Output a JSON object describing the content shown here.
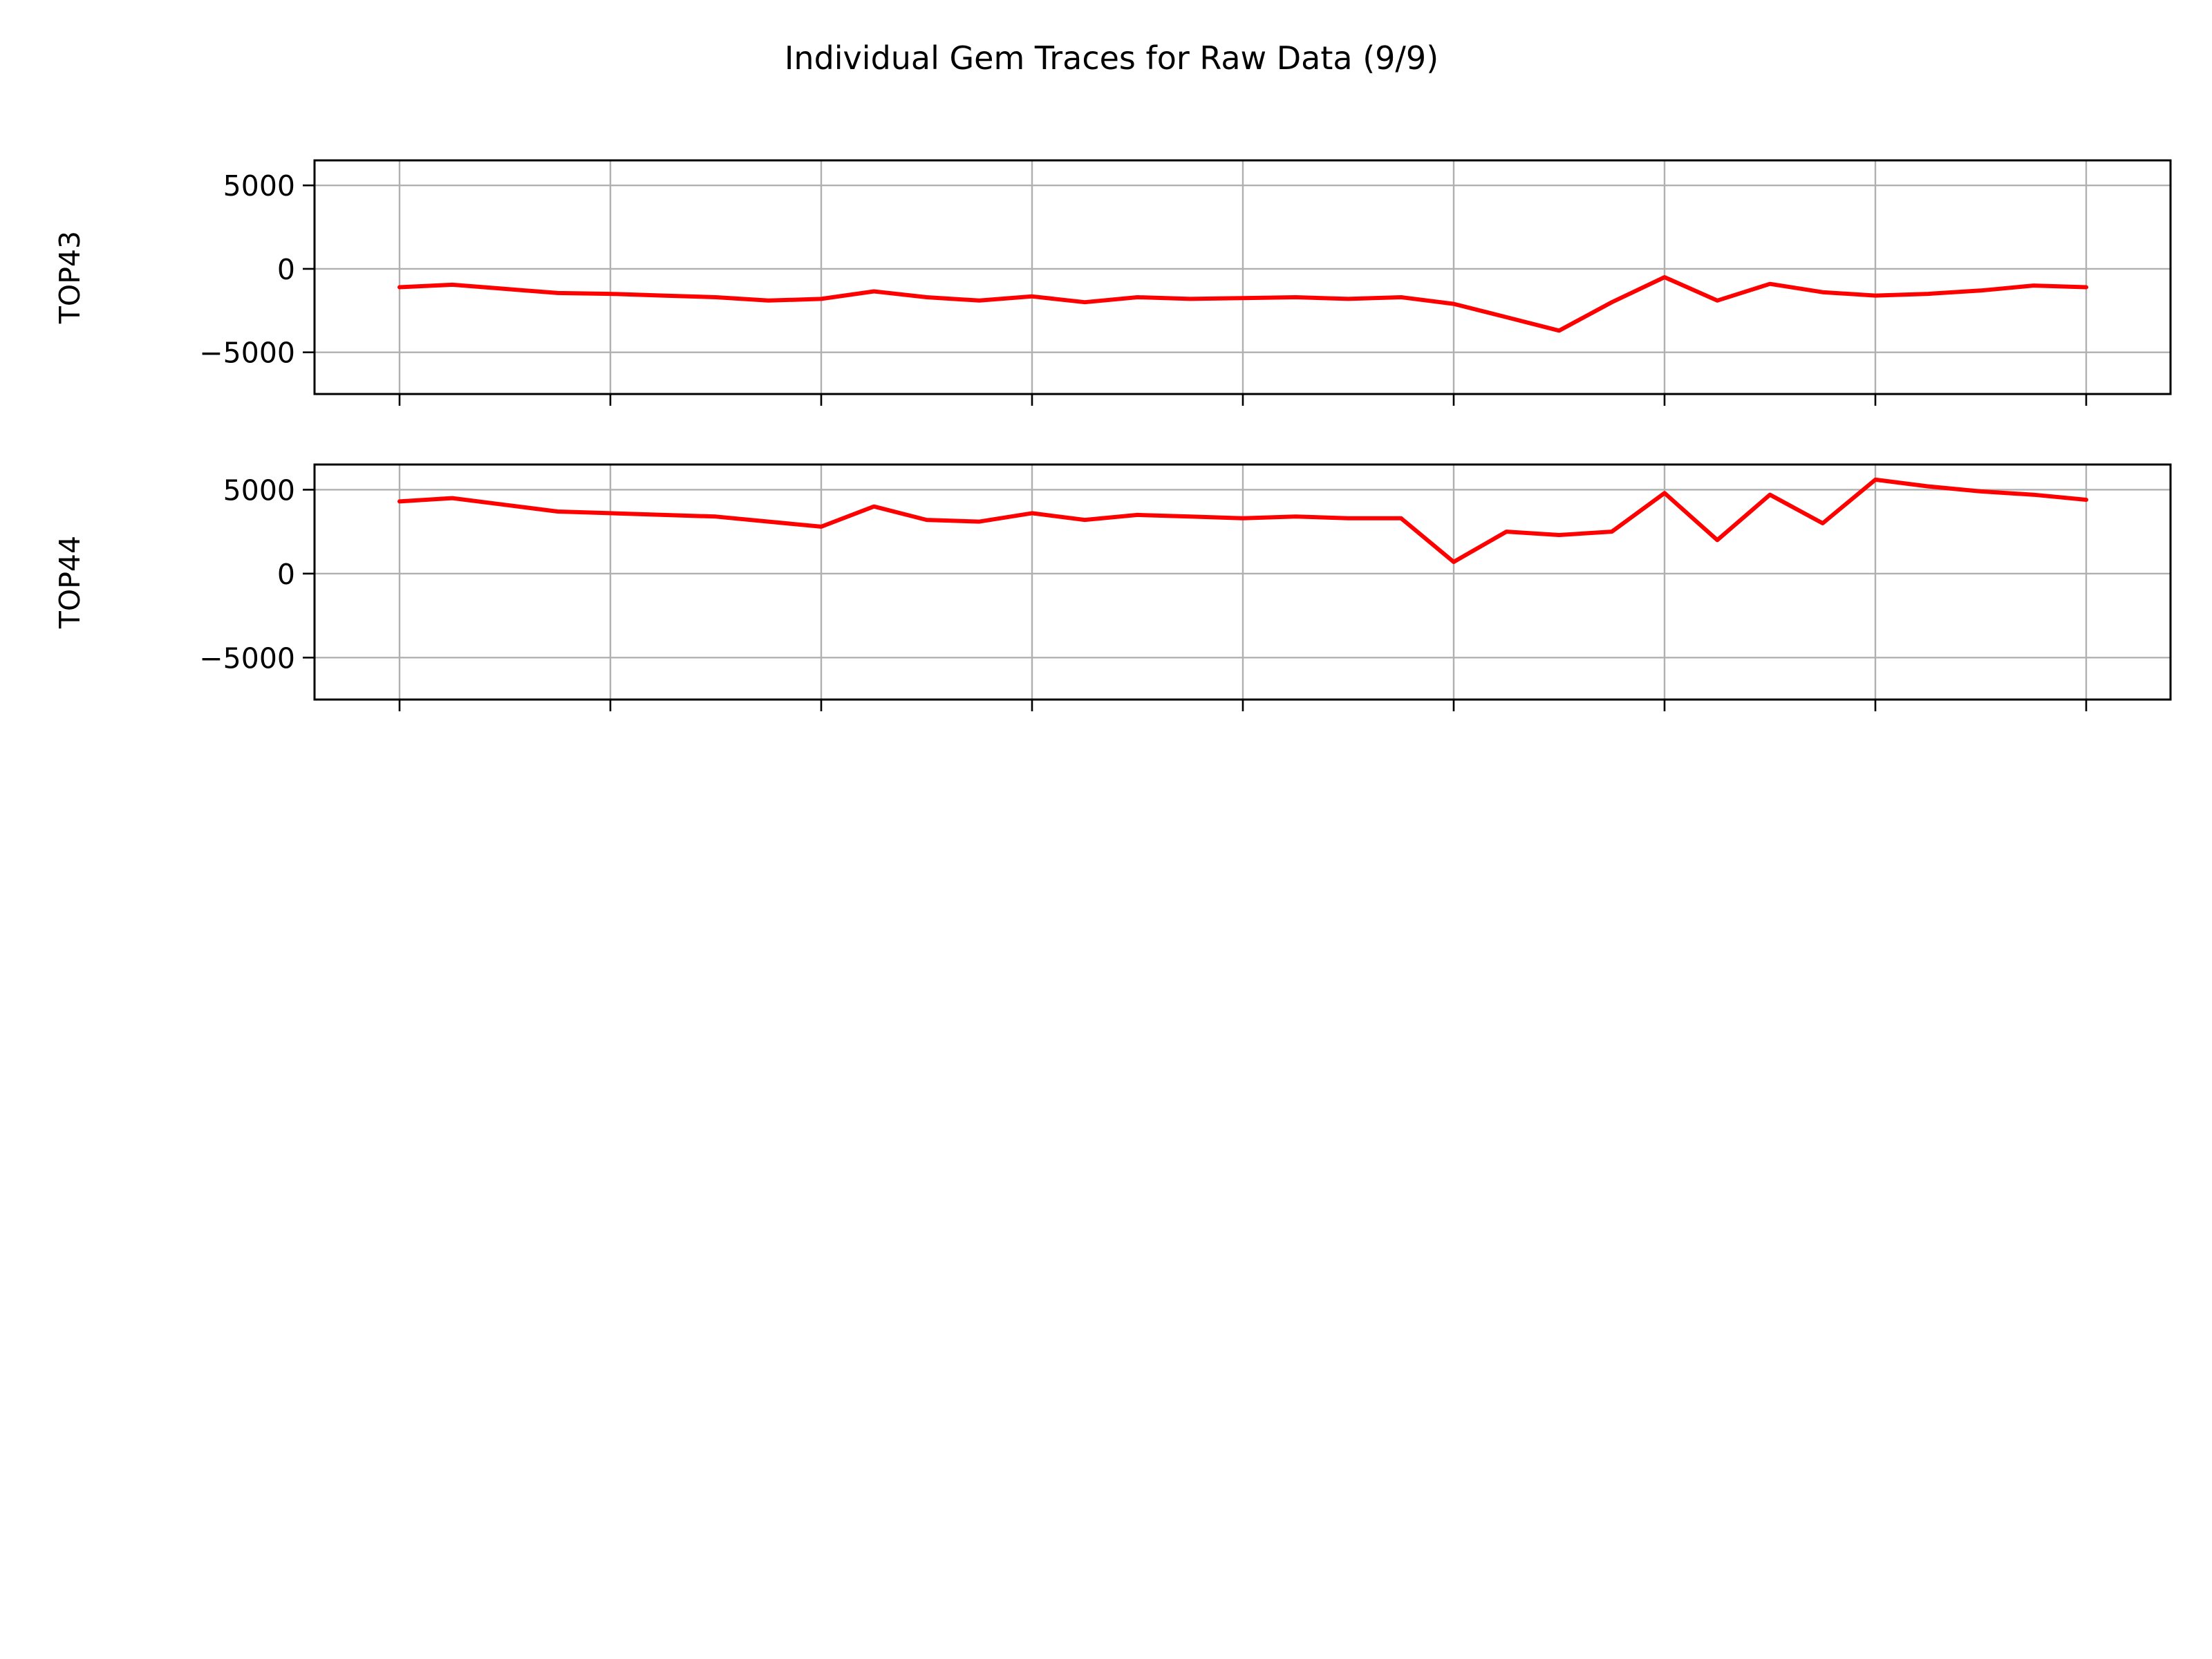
{
  "chart_data": {
    "type": "line",
    "title": "Individual Gem Traces for Raw Data (9/9)",
    "color": "#ff0000",
    "grid": true,
    "x_tick_count": 9,
    "x_tick_labels_visible": false,
    "panels": [
      {
        "ylabel": "TOP43",
        "ylim": [
          -7500,
          6500
        ],
        "yticks": [
          5000,
          0,
          -5000
        ],
        "ytick_labels": [
          "5000",
          "0",
          "−5000"
        ],
        "x": [
          0,
          0.25,
          0.5,
          0.75,
          1,
          1.25,
          1.5,
          1.75,
          2,
          2.25,
          2.5,
          2.75,
          3,
          3.25,
          3.5,
          3.75,
          4,
          4.25,
          4.5,
          4.75,
          5,
          5.25,
          5.5,
          5.75,
          6,
          6.25,
          6.5,
          6.75,
          7,
          7.25,
          7.5,
          7.75,
          8
        ],
        "values": [
          -1100,
          -950,
          -1200,
          -1450,
          -1500,
          -1600,
          -1700,
          -1900,
          -1800,
          -1350,
          -1700,
          -1900,
          -1650,
          -2000,
          -1700,
          -1800,
          -1750,
          -1700,
          -1800,
          -1700,
          -2100,
          -2900,
          -3700,
          -2000,
          -500,
          -1900,
          -900,
          -1400,
          -1600,
          -1500,
          -1300,
          -1000,
          -1100
        ]
      },
      {
        "ylabel": "TOP44",
        "ylim": [
          -7500,
          6500
        ],
        "yticks": [
          5000,
          0,
          -5000
        ],
        "ytick_labels": [
          "5000",
          "0",
          "−5000"
        ],
        "x": [
          0,
          0.25,
          0.5,
          0.75,
          1,
          1.25,
          1.5,
          1.75,
          2,
          2.25,
          2.5,
          2.75,
          3,
          3.25,
          3.5,
          3.75,
          4,
          4.25,
          4.5,
          4.75,
          5,
          5.25,
          5.5,
          5.75,
          6,
          6.25,
          6.5,
          6.75,
          7,
          7.25,
          7.5,
          7.75,
          8
        ],
        "values": [
          4300,
          4500,
          4100,
          3700,
          3600,
          3500,
          3400,
          3100,
          2800,
          4000,
          3200,
          3100,
          3600,
          3200,
          3500,
          3400,
          3300,
          3400,
          3300,
          3300,
          700,
          2500,
          2300,
          2500,
          4800,
          2000,
          4700,
          3000,
          5600,
          5200,
          4900,
          4700,
          4400
        ]
      }
    ]
  }
}
